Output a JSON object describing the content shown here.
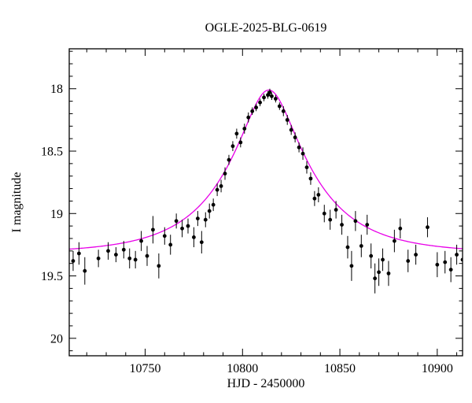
{
  "page": {
    "background": "#ffffff"
  },
  "chart_data": {
    "type": "scatter",
    "title": "OGLE-2025-BLG-0619",
    "xlabel": "HJD - 2450000",
    "ylabel": "I magnitude",
    "xlim": [
      10711,
      10913
    ],
    "ylim": [
      17.68,
      20.14
    ],
    "y_inverted": true,
    "grid": false,
    "legend": "none",
    "x_major_step": 50,
    "x_minor_step": 10,
    "y_major_step": 0.5,
    "y_minor_step": 0.1,
    "x_major_ticks": [
      10750,
      10800,
      10850,
      10900
    ],
    "y_major_ticks": [
      18,
      18.5,
      19,
      19.5,
      20
    ],
    "points_color": "#000000",
    "model": {
      "name": "microlensing-model-curve",
      "type": "paczynski",
      "t0": 10813.5,
      "tE": 42,
      "u0": 0.31,
      "baseline_mag": 19.32,
      "peak_mag": 18.01,
      "color": "#e800e8"
    },
    "points": [
      [
        10713,
        19.38,
        0.08
      ],
      [
        10716,
        19.32,
        0.09
      ],
      [
        10719,
        19.46,
        0.11
      ],
      [
        10726,
        19.36,
        0.07
      ],
      [
        10731,
        19.3,
        0.07
      ],
      [
        10735,
        19.33,
        0.06
      ],
      [
        10739,
        19.29,
        0.07
      ],
      [
        10742,
        19.36,
        0.08
      ],
      [
        10745,
        19.37,
        0.07
      ],
      [
        10748,
        19.22,
        0.08
      ],
      [
        10751,
        19.34,
        0.08
      ],
      [
        10754,
        19.13,
        0.11
      ],
      [
        10757,
        19.42,
        0.1
      ],
      [
        10760,
        19.18,
        0.07
      ],
      [
        10763,
        19.25,
        0.08
      ],
      [
        10766,
        19.06,
        0.06
      ],
      [
        10769,
        19.12,
        0.07
      ],
      [
        10772,
        19.1,
        0.06
      ],
      [
        10775,
        19.19,
        0.08
      ],
      [
        10777,
        19.04,
        0.06
      ],
      [
        10779,
        19.23,
        0.09
      ],
      [
        10781,
        19.05,
        0.06
      ],
      [
        10783,
        18.98,
        0.06
      ],
      [
        10785,
        18.93,
        0.05
      ],
      [
        10787,
        18.81,
        0.05
      ],
      [
        10789,
        18.78,
        0.05
      ],
      [
        10791,
        18.68,
        0.05
      ],
      [
        10793,
        18.57,
        0.04
      ],
      [
        10795,
        18.46,
        0.04
      ],
      [
        10797,
        18.36,
        0.04
      ],
      [
        10799,
        18.43,
        0.04
      ],
      [
        10801,
        18.32,
        0.04
      ],
      [
        10803,
        18.23,
        0.04
      ],
      [
        10805,
        18.18,
        0.03
      ],
      [
        10807,
        18.15,
        0.03
      ],
      [
        10809,
        18.11,
        0.03
      ],
      [
        10811,
        18.07,
        0.03
      ],
      [
        10813,
        18.05,
        0.03
      ],
      [
        10814,
        18.03,
        0.03
      ],
      [
        10815,
        18.06,
        0.03
      ],
      [
        10817,
        18.08,
        0.03
      ],
      [
        10819,
        18.14,
        0.03
      ],
      [
        10821,
        18.18,
        0.04
      ],
      [
        10823,
        18.25,
        0.04
      ],
      [
        10825,
        18.33,
        0.04
      ],
      [
        10827,
        18.39,
        0.04
      ],
      [
        10829,
        18.47,
        0.04
      ],
      [
        10831,
        18.52,
        0.05
      ],
      [
        10833,
        18.63,
        0.05
      ],
      [
        10835,
        18.72,
        0.05
      ],
      [
        10837,
        18.88,
        0.06
      ],
      [
        10839,
        18.85,
        0.06
      ],
      [
        10842,
        19.0,
        0.07
      ],
      [
        10845,
        19.05,
        0.08
      ],
      [
        10848,
        18.97,
        0.07
      ],
      [
        10851,
        19.09,
        0.08
      ],
      [
        10854,
        19.27,
        0.09
      ],
      [
        10856,
        19.42,
        0.12
      ],
      [
        10858,
        19.06,
        0.08
      ],
      [
        10861,
        19.26,
        0.09
      ],
      [
        10864,
        19.09,
        0.08
      ],
      [
        10866,
        19.34,
        0.1
      ],
      [
        10868,
        19.52,
        0.12
      ],
      [
        10870,
        19.47,
        0.11
      ],
      [
        10872,
        19.37,
        0.09
      ],
      [
        10875,
        19.48,
        0.1
      ],
      [
        10878,
        19.22,
        0.09
      ],
      [
        10881,
        19.12,
        0.08
      ],
      [
        10885,
        19.38,
        0.09
      ],
      [
        10889,
        19.33,
        0.08
      ],
      [
        10895,
        19.11,
        0.08
      ],
      [
        10900,
        19.41,
        0.1
      ],
      [
        10904,
        19.39,
        0.09
      ],
      [
        10907,
        19.45,
        0.1
      ],
      [
        10910,
        19.33,
        0.08
      ],
      [
        10913,
        19.37,
        0.09
      ]
    ]
  }
}
